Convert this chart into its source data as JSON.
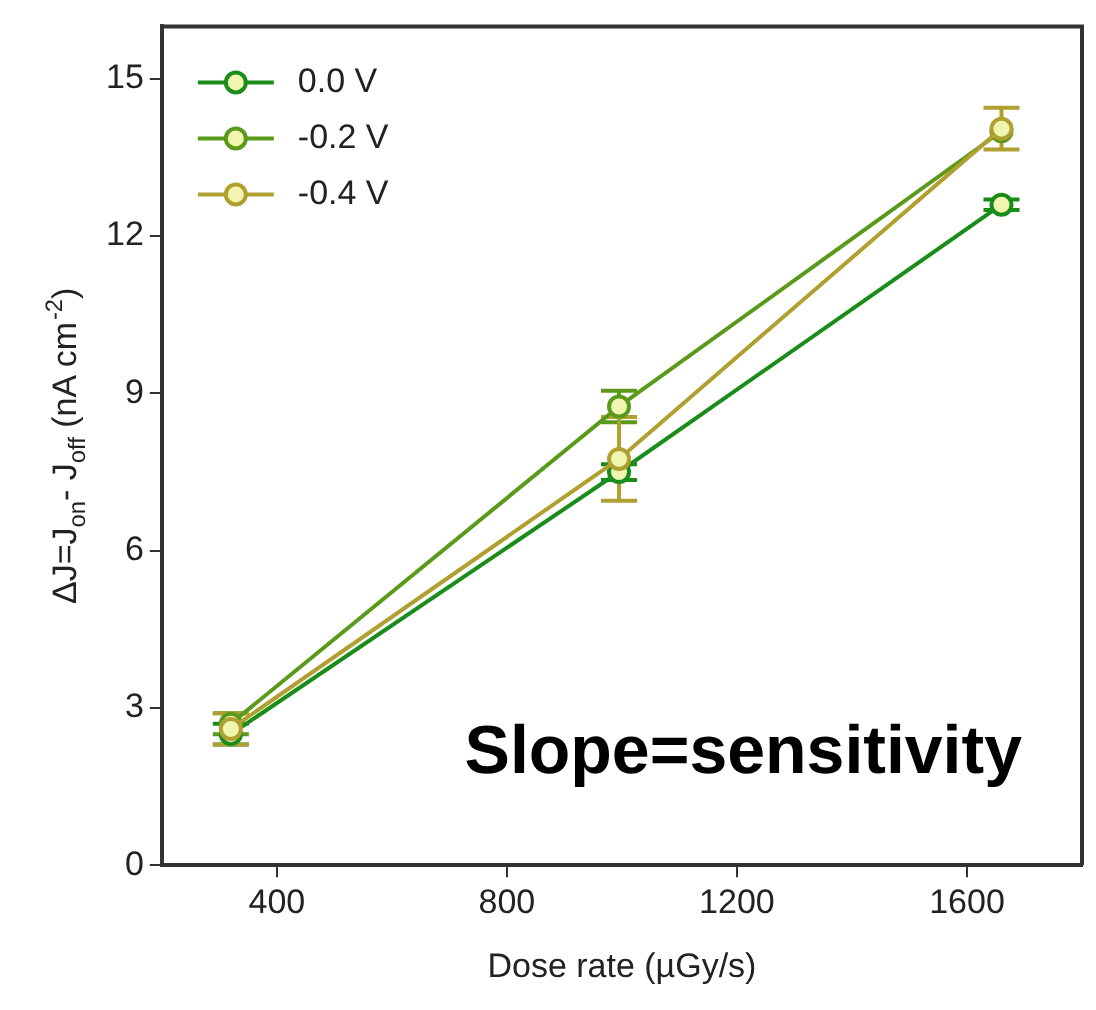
{
  "chart_data": {
    "type": "line",
    "xlabel": "Dose rate (µGy/s)",
    "ylabel": "ΔJ=J$_{on}$- J$_{off}$ (nA cm$^{-2}$)",
    "x": [
      320,
      995,
      1660
    ],
    "series": [
      {
        "name": "0.0 V",
        "color": "#1a8c1a",
        "values": [
          2.5,
          7.5,
          12.6
        ],
        "errors": [
          0.2,
          0.15,
          0.1
        ]
      },
      {
        "name": "-0.2 V",
        "color": "#5a9a1a",
        "values": [
          2.7,
          8.75,
          14.0
        ],
        "errors": [
          0.2,
          0.3,
          null
        ]
      },
      {
        "name": "-0.4 V",
        "color": "#b0a030",
        "values": [
          2.6,
          7.75,
          14.05
        ],
        "errors": [
          0.3,
          0.8,
          0.4
        ]
      }
    ],
    "xlim": [
      200,
      1800
    ],
    "ylim": [
      0,
      16
    ],
    "xticks": [
      400,
      800,
      1200,
      1600
    ],
    "yticks": [
      0,
      3,
      6,
      9,
      12,
      15
    ],
    "marker": "circle",
    "legend": "top left",
    "grid": false,
    "annotations": [
      "Slope=sensitivity"
    ]
  }
}
